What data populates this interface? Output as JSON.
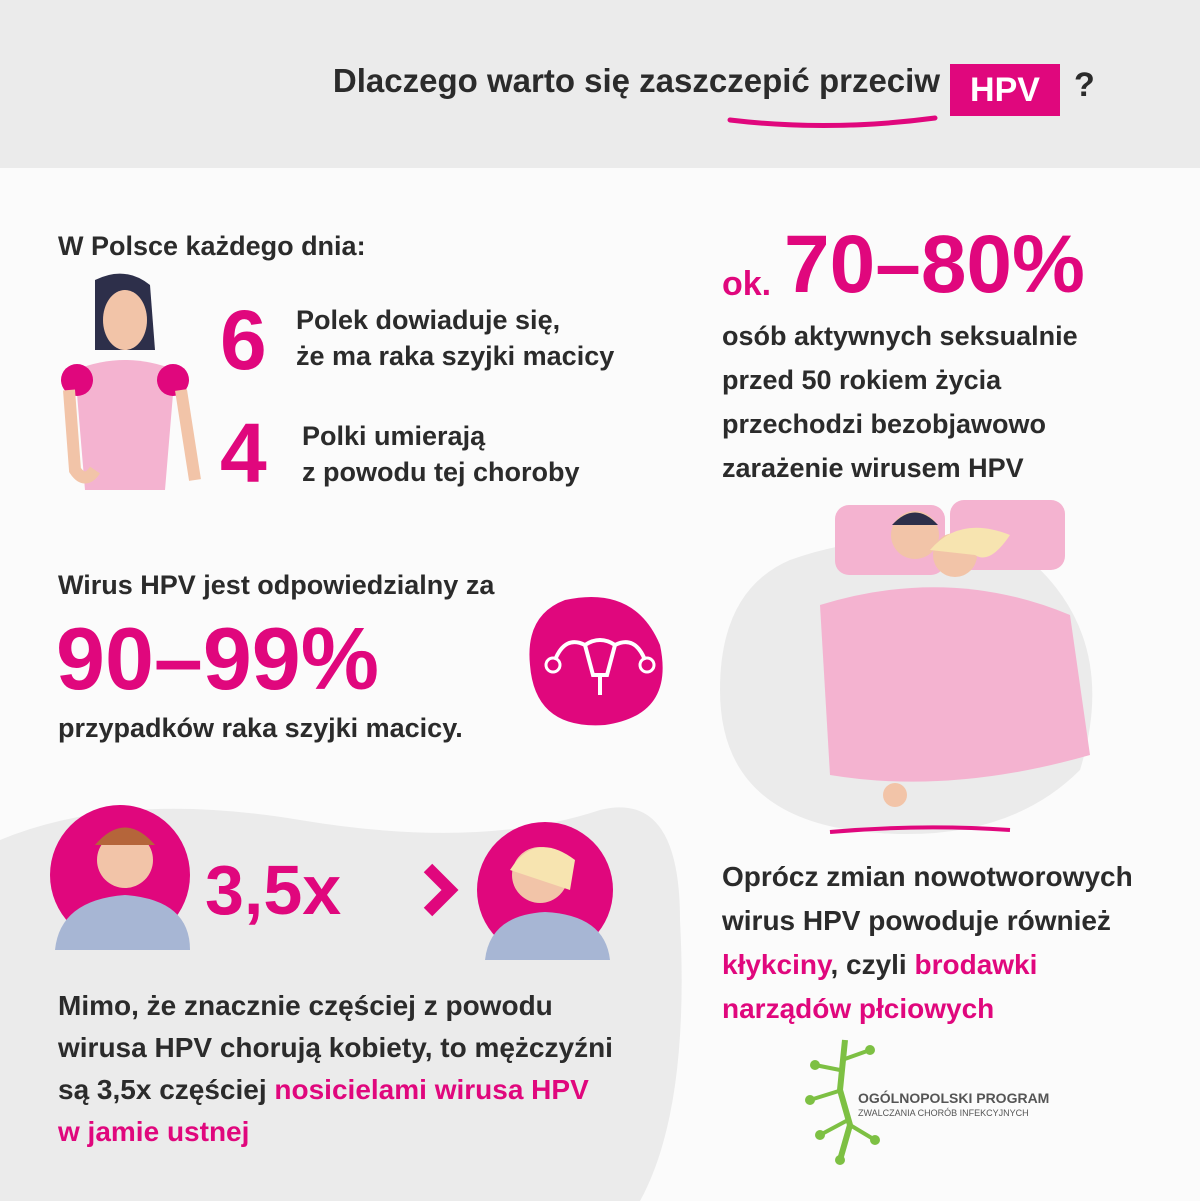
{
  "header": {
    "title": "Dlaczego warto się zaszczepić przeciw",
    "badge": "HPV",
    "question_mark": "?"
  },
  "daily": {
    "heading": "W Polsce każdego dnia:",
    "items": [
      {
        "number": "6",
        "lines": [
          "Polek dowiaduje się,",
          "że ma raka szyjki macicy"
        ]
      },
      {
        "number": "4",
        "lines": [
          "Polki umierają",
          "z powodu tej choroby"
        ]
      }
    ]
  },
  "infection": {
    "prefix": "ok.",
    "figure": "70–80%",
    "lines": [
      "osób aktywnych seksualnie",
      "przed 50 rokiem życia",
      "przechodzi bezobjawowo",
      "zarażenie wirusem HPV"
    ]
  },
  "responsibility": {
    "heading": "Wirus HPV jest odpowiedzialny za",
    "figure": "90–99%",
    "caption": "przypadków raka szyjki macicy."
  },
  "carriers": {
    "figure": "3,5x",
    "lines": [
      [
        "Mimo, że znacznie częściej z powodu"
      ],
      [
        "wirusa HPV chorują kobiety, to mężczyźni"
      ],
      [
        "są 3,5x częściej ",
        "nosicielami wirusa HPV"
      ],
      [
        "w jamie ustnej"
      ]
    ]
  },
  "warts": {
    "lines": [
      [
        "Oprócz zmian nowotworowych"
      ],
      [
        "wirus HPV powoduje również"
      ],
      [
        "kłykciny",
        ", czyli ",
        "brodawki"
      ],
      [
        "narządów płciowych"
      ]
    ]
  },
  "logo": {
    "line1": "OGÓLNOPOLSKI PROGRAM",
    "line2": "ZWALCZANIA CHORÓB INFEKCYJNYCH"
  }
}
